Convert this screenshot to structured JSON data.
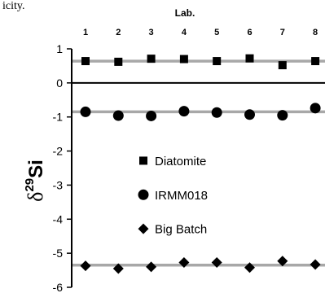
{
  "fragment_text": "icity.",
  "chart_data": {
    "type": "scatter",
    "xlabel": "Lab.",
    "ylabel_delta": "δ",
    "ylabel_sup": "29",
    "ylabel_si": "Si",
    "x": [
      1,
      2,
      3,
      4,
      5,
      6,
      7,
      8
    ],
    "x_tick_labels": [
      "1",
      "2",
      "3",
      "4",
      "5",
      "6",
      "7",
      "8"
    ],
    "ylim": [
      -6,
      1
    ],
    "y_ticks": [
      1,
      0,
      -1,
      -2,
      -3,
      -4,
      -5,
      -6
    ],
    "y_tick_labels": [
      "1",
      "0",
      "-1",
      "-2",
      "-3",
      "-4",
      "-5",
      "-6"
    ],
    "legend_position": "center",
    "series": [
      {
        "name": "Diatomite",
        "marker": "square",
        "values": [
          0.64,
          0.62,
          0.71,
          0.7,
          0.64,
          0.72,
          0.52,
          0.64
        ],
        "reference": 0.64
      },
      {
        "name": "IRMM018",
        "marker": "circle",
        "values": [
          -0.85,
          -0.96,
          -0.97,
          -0.83,
          -0.87,
          -0.93,
          -0.95,
          -0.74
        ],
        "reference": -0.85
      },
      {
        "name": "Big Batch",
        "marker": "diamond",
        "values": [
          -5.37,
          -5.45,
          -5.4,
          -5.27,
          -5.27,
          -5.42,
          -5.23,
          -5.33
        ],
        "reference": -5.35
      }
    ],
    "colors": {
      "marker": "#000000",
      "reference_line": "#a8a8a8",
      "axis": "#000000"
    }
  }
}
